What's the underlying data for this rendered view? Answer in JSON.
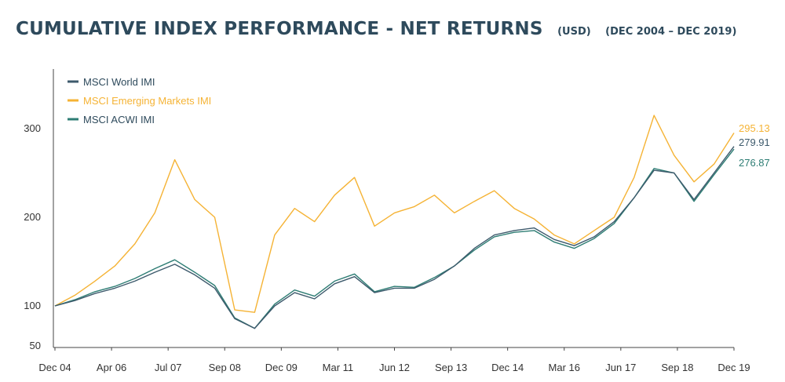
{
  "header": {
    "title": "CUMULATIVE INDEX PERFORMANCE - NET RETURNS",
    "currency": "(USD)",
    "period": "(DEC 2004 – DEC 2019)"
  },
  "chart_data": {
    "type": "line",
    "title": "CUMULATIVE INDEX PERFORMANCE - NET RETURNS",
    "xlabel": "",
    "ylabel": "",
    "x_ticks": [
      "Dec 04",
      "Apr 06",
      "Jul 07",
      "Sep 08",
      "Dec 09",
      "Mar 11",
      "Jun 12",
      "Sep 13",
      "Dec 14",
      "Mar 16",
      "Jun 17",
      "Sep 18",
      "Dec 19"
    ],
    "y_ticks": [
      50,
      100,
      200,
      300
    ],
    "ylim": [
      50,
      340
    ],
    "legend_position": "top-left",
    "grid": false,
    "x": [
      "Dec 04",
      "Jun 05",
      "Dec 05",
      "Jun 06",
      "Dec 06",
      "Jun 07",
      "Oct 07",
      "Mar 08",
      "Jun 08",
      "Dec 08",
      "Feb 09",
      "Jun 09",
      "Dec 09",
      "Jun 10",
      "Dec 10",
      "Apr 11",
      "Sep 11",
      "Dec 11",
      "Jun 12",
      "Dec 12",
      "Jun 13",
      "Dec 13",
      "Jun 14",
      "Dec 14",
      "Jun 15",
      "Dec 15",
      "Feb 16",
      "Jun 16",
      "Dec 16",
      "Jun 17",
      "Jan 18",
      "Jun 18",
      "Dec 18",
      "Jun 19",
      "Dec 19"
    ],
    "series": [
      {
        "name": "MSCI World IMI",
        "color": "#3d5a6c",
        "end_label": "279.91",
        "values": [
          100,
          106,
          114,
          120,
          128,
          138,
          147,
          135,
          120,
          84,
          72,
          100,
          115,
          108,
          125,
          133,
          115,
          120,
          120,
          130,
          145,
          165,
          180,
          185,
          188,
          175,
          168,
          178,
          195,
          222,
          253,
          250,
          220,
          250,
          279.91
        ]
      },
      {
        "name": "MSCI Emerging Markets IMI",
        "color": "#f5b335",
        "end_label": "295.13",
        "values": [
          100,
          112,
          128,
          145,
          170,
          205,
          265,
          220,
          200,
          95,
          92,
          180,
          210,
          195,
          225,
          245,
          190,
          205,
          212,
          225,
          205,
          218,
          230,
          210,
          198,
          180,
          170,
          185,
          200,
          245,
          315,
          270,
          240,
          260,
          295.13
        ]
      },
      {
        "name": "MSCI ACWI IMI",
        "color": "#2e7d74",
        "end_label": "276.87",
        "values": [
          100,
          107,
          116,
          122,
          131,
          142,
          152,
          138,
          123,
          85,
          72,
          102,
          118,
          111,
          128,
          136,
          116,
          122,
          121,
          132,
          145,
          163,
          178,
          183,
          185,
          172,
          165,
          176,
          193,
          222,
          255,
          250,
          218,
          248,
          276.87
        ]
      }
    ]
  }
}
